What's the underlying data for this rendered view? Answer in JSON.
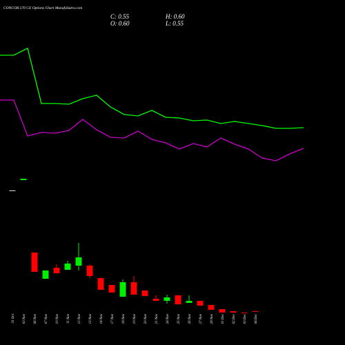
{
  "chart_data": {
    "type": "candlestick",
    "title": "CONCOR 570 CE Options Chart MunafaSutra.com",
    "stats": [
      "C: 0.55",
      "H: 0.60",
      "O: 0.60",
      "L: 0.55"
    ],
    "categories": [
      "31 Oct",
      "03 Nov",
      "06 Nov",
      "07 Nov",
      "10 Nov",
      "11 Nov",
      "12 Nov",
      "13 Nov",
      "14 Nov",
      "17 Nov",
      "18 Nov",
      "19 Nov",
      "20 Nov",
      "21 Nov",
      "24 Nov",
      "25 Nov",
      "26 Nov",
      "27 Nov",
      "28 Nov",
      "01 Dec",
      "02 Dec",
      "03 Dec",
      "04 Dec"
    ],
    "open": [
      9.35,
      10.1,
      4.85,
      2.95,
      3.75,
      3.6,
      3.9,
      3.9,
      3.0,
      2.5,
      1.65,
      2.7,
      2.1,
      1.5,
      1.35,
      1.75,
      1.2,
      1.35,
      1.05,
      0.75,
      0.6,
      0.5,
      0.6
    ],
    "high": [
      9.35,
      10.2,
      4.85,
      3.55,
      4.0,
      4.25,
      5.55,
      4.0,
      3.0,
      2.5,
      2.9,
      3.15,
      2.1,
      1.75,
      1.8,
      1.75,
      1.75,
      1.35,
      1.05,
      0.75,
      0.6,
      0.5,
      0.6
    ],
    "low": [
      9.35,
      10.1,
      3.45,
      2.95,
      3.35,
      3.6,
      3.55,
      3.0,
      2.15,
      1.95,
      1.65,
      1.8,
      1.7,
      1.35,
      1.15,
      1.1,
      1.2,
      1.0,
      0.7,
      0.5,
      0.5,
      0.45,
      0.55
    ],
    "close": [
      9.35,
      10.2,
      3.45,
      3.55,
      3.35,
      4.05,
      4.5,
      3.15,
      2.15,
      1.95,
      2.7,
      1.8,
      1.7,
      1.35,
      1.6,
      1.1,
      1.35,
      1.0,
      0.7,
      0.5,
      0.5,
      0.45,
      0.55
    ],
    "up_color": "#00ee00",
    "down_color": "#ff0000",
    "flat_color": "#dddddd",
    "series": [
      {
        "color": "#00ff00",
        "values": [
          19.15,
          19.15,
          19.65,
          15.65,
          15.65,
          15.6,
          16.0,
          16.25,
          15.4,
          14.85,
          14.75,
          15.15,
          14.65,
          14.6,
          14.4,
          14.45,
          14.2,
          14.35,
          14.2,
          14.05,
          13.85,
          13.85,
          13.9
        ]
      },
      {
        "color": "#cc00cc",
        "values": [
          15.9,
          15.9,
          13.3,
          13.55,
          13.5,
          13.7,
          14.5,
          13.75,
          13.2,
          13.15,
          13.65,
          13.05,
          12.8,
          12.35,
          12.75,
          12.5,
          13.15,
          12.7,
          12.35,
          11.7,
          11.5,
          12.0,
          12.4
        ]
      }
    ],
    "ylim": [
      0,
      22
    ]
  }
}
